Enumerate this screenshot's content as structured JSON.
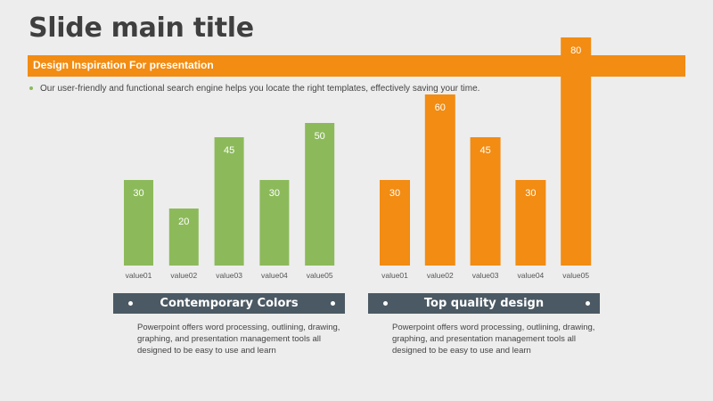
{
  "slide": {
    "title": "Slide main title",
    "banner": "Design Inspiration For presentation",
    "bullet": "Our user-friendly and functional search engine helps you locate the right templates, effectively saving your time."
  },
  "colors": {
    "green": "#8cba5a",
    "orange": "#f28c12",
    "label_bg": "#4b5964"
  },
  "panels": [
    {
      "label": "Contemporary Colors",
      "desc": "Powerpoint offers word processing, outlining, drawing, graphing, and presentation management tools all designed to be easy to use and learn"
    },
    {
      "label": "Top quality design",
      "desc": "Powerpoint offers word processing, outlining, drawing, graphing, and presentation management tools all designed to be easy to use and learn"
    }
  ],
  "chart_data": [
    {
      "type": "bar",
      "categories": [
        "value01",
        "value02",
        "value03",
        "value04",
        "value05"
      ],
      "values": [
        30,
        20,
        45,
        30,
        50
      ],
      "color": "#8cba5a",
      "ylim": [
        0,
        80
      ]
    },
    {
      "type": "bar",
      "categories": [
        "value01",
        "value02",
        "value03",
        "value04",
        "value05"
      ],
      "values": [
        30,
        60,
        45,
        30,
        80
      ],
      "color": "#f28c12",
      "ylim": [
        0,
        80
      ]
    }
  ]
}
